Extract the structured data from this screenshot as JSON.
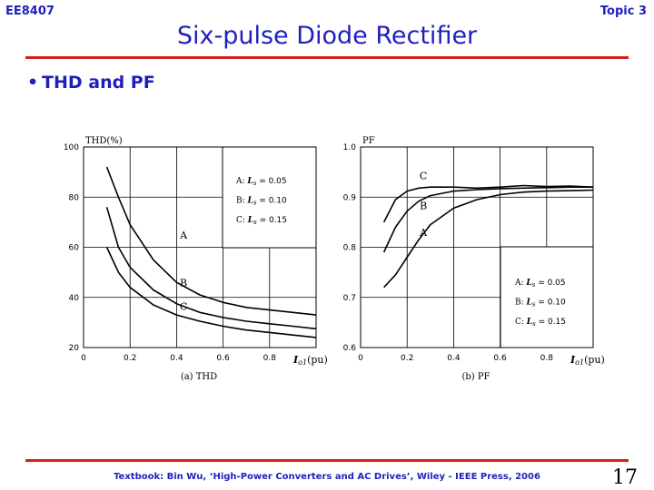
{
  "header": {
    "course": "EE8407",
    "topic": "Topic 3"
  },
  "title": "Six-pulse Diode Rectifier",
  "bullet": "THD and PF",
  "footer": "Textbook: Bin Wu, ‘High-Power Converters and AC Drives’, Wiley - IEEE Press, 2006",
  "page_number": "17",
  "colors": {
    "accent": "#1f1fbf",
    "rule": "#d62020"
  },
  "chart_data": [
    {
      "type": "line",
      "caption": "(a) THD",
      "ylabel": "THD(%)",
      "xlabel_main": "I",
      "xlabel_sub": "o1",
      "xlabel_unit": "(pu)",
      "xlim": [
        0,
        1.0
      ],
      "ylim": [
        20,
        100
      ],
      "xticks": [
        "0",
        "0.2",
        "0.4",
        "0.6",
        "0.8"
      ],
      "yticks": [
        "20",
        "40",
        "60",
        "80",
        "100"
      ],
      "legend": [
        "A: ",
        "L",
        "s",
        " = 0.05",
        "B: ",
        "L",
        "s",
        " = 0.10",
        "C: ",
        "L",
        "s",
        " = 0.15"
      ],
      "legend_position": "top-right",
      "grid": true,
      "series": [
        {
          "name": "A",
          "x": [
            0.1,
            0.15,
            0.2,
            0.3,
            0.4,
            0.5,
            0.6,
            0.7,
            0.8,
            0.9,
            1.0
          ],
          "y": [
            92,
            80,
            69,
            55,
            46,
            41,
            38,
            36,
            35,
            34,
            33
          ]
        },
        {
          "name": "B",
          "x": [
            0.1,
            0.15,
            0.2,
            0.3,
            0.4,
            0.5,
            0.6,
            0.7,
            0.8,
            0.9,
            1.0
          ],
          "y": [
            76,
            60,
            52,
            43,
            37.5,
            34,
            32,
            30.5,
            29.5,
            28.5,
            27.5
          ]
        },
        {
          "name": "C",
          "x": [
            0.1,
            0.15,
            0.2,
            0.3,
            0.4,
            0.5,
            0.6,
            0.7,
            0.8,
            0.9,
            1.0
          ],
          "y": [
            60,
            50,
            44,
            37,
            33,
            30.5,
            28.5,
            27,
            26,
            25,
            24
          ]
        }
      ]
    },
    {
      "type": "line",
      "caption": "(b) PF",
      "ylabel": "PF",
      "xlabel_main": "I",
      "xlabel_sub": "o1",
      "xlabel_unit": "(pu)",
      "xlim": [
        0,
        1.0
      ],
      "ylim": [
        0.6,
        1.0
      ],
      "xticks": [
        "0",
        "0.2",
        "0.4",
        "0.6",
        "0.8"
      ],
      "yticks": [
        "0.6",
        "0.7",
        "0.8",
        "0.9",
        "1.0"
      ],
      "legend": [
        "A: ",
        "L",
        "s",
        " = 0.05",
        "B: ",
        "L",
        "s",
        " = 0.10",
        "C: ",
        "L",
        "s",
        " = 0.15"
      ],
      "legend_position": "bottom-right",
      "grid": true,
      "series": [
        {
          "name": "A",
          "x": [
            0.1,
            0.15,
            0.2,
            0.25,
            0.3,
            0.4,
            0.5,
            0.6,
            0.7,
            0.8,
            0.9,
            1.0
          ],
          "y": [
            0.72,
            0.745,
            0.78,
            0.815,
            0.845,
            0.878,
            0.895,
            0.905,
            0.91,
            0.912,
            0.913,
            0.914
          ]
        },
        {
          "name": "B",
          "x": [
            0.1,
            0.15,
            0.2,
            0.25,
            0.3,
            0.4,
            0.5,
            0.6,
            0.7,
            0.8,
            0.9,
            1.0
          ],
          "y": [
            0.79,
            0.84,
            0.872,
            0.892,
            0.903,
            0.912,
            0.915,
            0.917,
            0.918,
            0.919,
            0.92,
            0.92
          ]
        },
        {
          "name": "C",
          "x": [
            0.1,
            0.15,
            0.2,
            0.25,
            0.3,
            0.4,
            0.5,
            0.6,
            0.7,
            0.8,
            0.9,
            1.0
          ],
          "y": [
            0.85,
            0.895,
            0.912,
            0.918,
            0.92,
            0.92,
            0.918,
            0.92,
            0.923,
            0.921,
            0.922,
            0.92
          ]
        }
      ]
    }
  ]
}
